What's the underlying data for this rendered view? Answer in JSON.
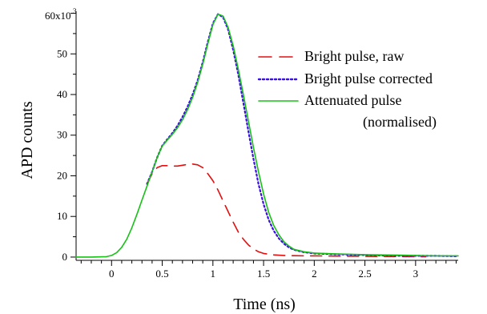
{
  "chart_data": {
    "type": "line",
    "xlabel": "Time (ns)",
    "ylabel": "APD counts",
    "y_multiplier_label": "60x10",
    "y_multiplier_exp": "3",
    "xlim": [
      -0.35,
      3.42
    ],
    "ylim": [
      -0.8,
      60.5
    ],
    "x_ticks": [
      0,
      0.5,
      1,
      1.5,
      2,
      2.5,
      3
    ],
    "x_tick_labels": [
      "0",
      "0.5",
      "1",
      "1.5",
      "2",
      "2.5",
      "3"
    ],
    "y_ticks": [
      0,
      10,
      20,
      30,
      40,
      50
    ],
    "y_tick_labels": [
      "0",
      "10",
      "20",
      "30",
      "40",
      "50"
    ],
    "grid": false,
    "legend_position": "right",
    "series": [
      {
        "name": "Bright pulse, raw",
        "color": "#e01010",
        "style": "dashed",
        "points": [
          [
            0.35,
            18
          ],
          [
            0.4,
            20.5
          ],
          [
            0.45,
            22
          ],
          [
            0.5,
            22.5
          ],
          [
            0.55,
            22.5
          ],
          [
            0.6,
            22.4
          ],
          [
            0.65,
            22.4
          ],
          [
            0.7,
            22.6
          ],
          [
            0.75,
            22.8
          ],
          [
            0.8,
            22.9
          ],
          [
            0.85,
            22.7
          ],
          [
            0.9,
            22
          ],
          [
            0.95,
            20.5
          ],
          [
            1.0,
            18.8
          ],
          [
            1.05,
            16.5
          ],
          [
            1.1,
            13.8
          ],
          [
            1.15,
            11.2
          ],
          [
            1.2,
            8.6
          ],
          [
            1.25,
            6.2
          ],
          [
            1.3,
            4.4
          ],
          [
            1.35,
            3.0
          ],
          [
            1.4,
            2.0
          ],
          [
            1.45,
            1.3
          ],
          [
            1.5,
            0.9
          ],
          [
            1.6,
            0.55
          ],
          [
            1.7,
            0.4
          ],
          [
            1.8,
            0.35
          ],
          [
            1.9,
            0.3
          ],
          [
            2.0,
            0.3
          ],
          [
            2.2,
            0.25
          ],
          [
            2.5,
            0.2
          ],
          [
            2.8,
            0.15
          ],
          [
            3.0,
            0.1
          ],
          [
            3.1,
            0.1
          ]
        ]
      },
      {
        "name": "Bright pulse corrected",
        "color": "#3a10e0",
        "style": "dotted",
        "points": [
          [
            0.35,
            18
          ],
          [
            0.4,
            21
          ],
          [
            0.45,
            24.5
          ],
          [
            0.5,
            27.4
          ],
          [
            0.55,
            29
          ],
          [
            0.6,
            30.5
          ],
          [
            0.65,
            32.3
          ],
          [
            0.7,
            34.5
          ],
          [
            0.75,
            37
          ],
          [
            0.8,
            40
          ],
          [
            0.85,
            43.5
          ],
          [
            0.9,
            48
          ],
          [
            0.95,
            53
          ],
          [
            1.0,
            57.5
          ],
          [
            1.05,
            59.8
          ],
          [
            1.1,
            59
          ],
          [
            1.15,
            56
          ],
          [
            1.2,
            51
          ],
          [
            1.25,
            45
          ],
          [
            1.3,
            38
          ],
          [
            1.35,
            31
          ],
          [
            1.4,
            24.2
          ],
          [
            1.45,
            18
          ],
          [
            1.5,
            13
          ],
          [
            1.55,
            9.2
          ],
          [
            1.6,
            6.5
          ],
          [
            1.65,
            4.6
          ],
          [
            1.7,
            3.3
          ],
          [
            1.75,
            2.4
          ],
          [
            1.8,
            1.8
          ],
          [
            1.9,
            1.2
          ],
          [
            2.0,
            0.9
          ],
          [
            2.2,
            0.7
          ],
          [
            2.5,
            0.5
          ],
          [
            2.8,
            0.35
          ],
          [
            3.0,
            0.3
          ],
          [
            3.2,
            0.3
          ],
          [
            3.4,
            0.2
          ]
        ]
      },
      {
        "name": "Attenuated pulse\n(normalised)",
        "color": "#18c018",
        "style": "solid",
        "points": [
          [
            -0.35,
            0
          ],
          [
            -0.2,
            0
          ],
          [
            -0.05,
            0.1
          ],
          [
            0.0,
            0.4
          ],
          [
            0.05,
            1.1
          ],
          [
            0.1,
            2.4
          ],
          [
            0.15,
            4.4
          ],
          [
            0.2,
            7.2
          ],
          [
            0.25,
            10.5
          ],
          [
            0.3,
            14
          ],
          [
            0.35,
            17.5
          ],
          [
            0.4,
            21
          ],
          [
            0.45,
            24.5
          ],
          [
            0.5,
            27.3
          ],
          [
            0.55,
            28.8
          ],
          [
            0.6,
            30.2
          ],
          [
            0.65,
            31.8
          ],
          [
            0.7,
            33.8
          ],
          [
            0.75,
            36.3
          ],
          [
            0.8,
            39.3
          ],
          [
            0.85,
            43
          ],
          [
            0.9,
            47.5
          ],
          [
            0.95,
            52.5
          ],
          [
            1.0,
            57.2
          ],
          [
            1.05,
            59.8
          ],
          [
            1.1,
            59.3
          ],
          [
            1.15,
            56.5
          ],
          [
            1.2,
            52
          ],
          [
            1.25,
            46.3
          ],
          [
            1.3,
            40
          ],
          [
            1.35,
            33.5
          ],
          [
            1.4,
            27
          ],
          [
            1.45,
            21
          ],
          [
            1.5,
            15.5
          ],
          [
            1.55,
            11
          ],
          [
            1.6,
            7.8
          ],
          [
            1.65,
            5.5
          ],
          [
            1.7,
            3.8
          ],
          [
            1.75,
            2.7
          ],
          [
            1.8,
            1.9
          ],
          [
            1.9,
            1.3
          ],
          [
            2.0,
            1.0
          ],
          [
            2.2,
            0.8
          ],
          [
            2.5,
            0.6
          ],
          [
            2.8,
            0.5
          ],
          [
            3.0,
            0.4
          ],
          [
            3.2,
            0.3
          ],
          [
            3.42,
            0.3
          ]
        ]
      }
    ]
  }
}
